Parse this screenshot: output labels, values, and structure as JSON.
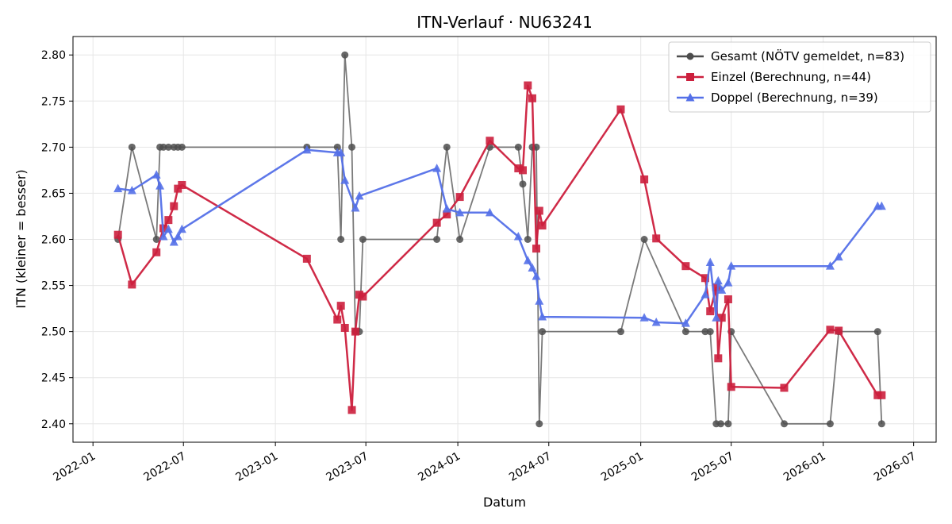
{
  "chart_data": {
    "type": "line",
    "title": "ITN-Verlauf · NU63241",
    "xlabel": "Datum",
    "ylabel": "ITN  (kleiner = besser)",
    "x_type": "date",
    "xlim": [
      "2021-11-22",
      "2026-08-15"
    ],
    "ylim": [
      2.38,
      2.82
    ],
    "x_ticks": [
      "2022-01-01",
      "2022-07-01",
      "2023-01-01",
      "2023-07-01",
      "2024-01-01",
      "2024-07-01",
      "2025-01-01",
      "2025-07-01",
      "2026-01-01",
      "2026-07-01"
    ],
    "x_tick_labels": [
      "2022-01",
      "2022-07",
      "2023-01",
      "2023-07",
      "2024-01",
      "2024-07",
      "2025-01",
      "2025-07",
      "2026-01",
      "2026-07"
    ],
    "y_ticks": [
      2.4,
      2.45,
      2.5,
      2.55,
      2.6,
      2.65,
      2.7,
      2.75,
      2.8
    ],
    "y_tick_labels": [
      "2.40",
      "2.45",
      "2.50",
      "2.55",
      "2.60",
      "2.65",
      "2.70",
      "2.75",
      "2.80"
    ],
    "grid": true,
    "legend_position": "top-right",
    "series": [
      {
        "name": "Gesamt (NÖTV gemeldet, n=83)",
        "color": "#4d4d4d",
        "marker": "circle",
        "points": [
          [
            "2022-02-20",
            2.6
          ],
          [
            "2022-03-20",
            2.7
          ],
          [
            "2022-05-08",
            2.6
          ],
          [
            "2022-05-15",
            2.7
          ],
          [
            "2022-05-22",
            2.7
          ],
          [
            "2022-06-01",
            2.7
          ],
          [
            "2022-06-12",
            2.7
          ],
          [
            "2022-06-20",
            2.7
          ],
          [
            "2022-06-28",
            2.7
          ],
          [
            "2023-03-05",
            2.7
          ],
          [
            "2023-05-05",
            2.7
          ],
          [
            "2023-05-12",
            2.6
          ],
          [
            "2023-05-20",
            2.8
          ],
          [
            "2023-06-03",
            2.7
          ],
          [
            "2023-06-10",
            2.5
          ],
          [
            "2023-06-18",
            2.5
          ],
          [
            "2023-06-25",
            2.6
          ],
          [
            "2023-11-20",
            2.6
          ],
          [
            "2023-12-10",
            2.7
          ],
          [
            "2024-01-05",
            2.6
          ],
          [
            "2024-03-05",
            2.7
          ],
          [
            "2024-05-01",
            2.7
          ],
          [
            "2024-05-10",
            2.66
          ],
          [
            "2024-05-20",
            2.6
          ],
          [
            "2024-05-29",
            2.7
          ],
          [
            "2024-06-06",
            2.7
          ],
          [
            "2024-06-12",
            2.4
          ],
          [
            "2024-06-18",
            2.5
          ],
          [
            "2024-11-22",
            2.5
          ],
          [
            "2025-01-08",
            2.6
          ],
          [
            "2025-04-01",
            2.5
          ],
          [
            "2025-05-10",
            2.5
          ],
          [
            "2025-05-20",
            2.5
          ],
          [
            "2025-06-01",
            2.4
          ],
          [
            "2025-06-10",
            2.4
          ],
          [
            "2025-06-25",
            2.4
          ],
          [
            "2025-07-01",
            2.5
          ],
          [
            "2025-10-15",
            2.4
          ],
          [
            "2026-01-15",
            2.4
          ],
          [
            "2026-02-01",
            2.5
          ],
          [
            "2026-04-20",
            2.5
          ],
          [
            "2026-04-28",
            2.4
          ]
        ]
      },
      {
        "name": "Einzel (Berechnung, n=44)",
        "color": "#cc1f3d",
        "marker": "square",
        "points": [
          [
            "2022-02-20",
            2.605
          ],
          [
            "2022-03-20",
            2.551
          ],
          [
            "2022-05-08",
            2.586
          ],
          [
            "2022-05-22",
            2.612
          ],
          [
            "2022-06-01",
            2.621
          ],
          [
            "2022-06-12",
            2.636
          ],
          [
            "2022-06-20",
            2.655
          ],
          [
            "2022-06-28",
            2.659
          ],
          [
            "2023-03-05",
            2.579
          ],
          [
            "2023-05-05",
            2.513
          ],
          [
            "2023-05-12",
            2.528
          ],
          [
            "2023-05-20",
            2.504
          ],
          [
            "2023-06-03",
            2.415
          ],
          [
            "2023-06-10",
            2.5
          ],
          [
            "2023-06-18",
            2.54
          ],
          [
            "2023-06-25",
            2.538
          ],
          [
            "2023-11-20",
            2.618
          ],
          [
            "2023-12-10",
            2.627
          ],
          [
            "2024-01-05",
            2.646
          ],
          [
            "2024-03-05",
            2.707
          ],
          [
            "2024-05-01",
            2.677
          ],
          [
            "2024-05-10",
            2.675
          ],
          [
            "2024-05-20",
            2.767
          ],
          [
            "2024-05-29",
            2.753
          ],
          [
            "2024-06-06",
            2.59
          ],
          [
            "2024-06-12",
            2.631
          ],
          [
            "2024-06-18",
            2.615
          ],
          [
            "2024-11-22",
            2.741
          ],
          [
            "2025-01-08",
            2.665
          ],
          [
            "2025-02-01",
            2.601
          ],
          [
            "2025-04-01",
            2.571
          ],
          [
            "2025-05-10",
            2.558
          ],
          [
            "2025-05-20",
            2.522
          ],
          [
            "2025-06-01",
            2.548
          ],
          [
            "2025-06-05",
            2.471
          ],
          [
            "2025-06-12",
            2.515
          ],
          [
            "2025-06-25",
            2.535
          ],
          [
            "2025-07-01",
            2.44
          ],
          [
            "2025-10-15",
            2.439
          ],
          [
            "2026-01-15",
            2.502
          ],
          [
            "2026-02-01",
            2.501
          ],
          [
            "2026-04-20",
            2.431
          ],
          [
            "2026-04-28",
            2.431
          ]
        ]
      },
      {
        "name": "Doppel (Berechnung, n=39)",
        "color": "#5470e8",
        "marker": "triangle",
        "points": [
          [
            "2022-02-20",
            2.655
          ],
          [
            "2022-03-20",
            2.653
          ],
          [
            "2022-05-08",
            2.67
          ],
          [
            "2022-05-15",
            2.658
          ],
          [
            "2022-05-22",
            2.603
          ],
          [
            "2022-06-01",
            2.611
          ],
          [
            "2022-06-12",
            2.597
          ],
          [
            "2022-06-20",
            2.603
          ],
          [
            "2022-06-28",
            2.611
          ],
          [
            "2023-03-05",
            2.697
          ],
          [
            "2023-05-05",
            2.694
          ],
          [
            "2023-05-12",
            2.694
          ],
          [
            "2023-05-20",
            2.664
          ],
          [
            "2023-06-10",
            2.634
          ],
          [
            "2023-06-18",
            2.647
          ],
          [
            "2023-11-20",
            2.677
          ],
          [
            "2023-12-10",
            2.633
          ],
          [
            "2024-01-05",
            2.629
          ],
          [
            "2024-03-05",
            2.629
          ],
          [
            "2024-05-01",
            2.603
          ],
          [
            "2024-05-20",
            2.577
          ],
          [
            "2024-05-29",
            2.569
          ],
          [
            "2024-06-06",
            2.56
          ],
          [
            "2024-06-12",
            2.533
          ],
          [
            "2024-06-18",
            2.516
          ],
          [
            "2025-01-08",
            2.515
          ],
          [
            "2025-02-01",
            2.51
          ],
          [
            "2025-04-01",
            2.509
          ],
          [
            "2025-05-10",
            2.54
          ],
          [
            "2025-05-20",
            2.575
          ],
          [
            "2025-06-01",
            2.515
          ],
          [
            "2025-06-05",
            2.555
          ],
          [
            "2025-06-12",
            2.545
          ],
          [
            "2025-06-25",
            2.553
          ],
          [
            "2025-07-01",
            2.571
          ],
          [
            "2026-01-15",
            2.571
          ],
          [
            "2026-02-01",
            2.581
          ],
          [
            "2026-04-20",
            2.636
          ],
          [
            "2026-04-28",
            2.636
          ]
        ]
      }
    ]
  }
}
